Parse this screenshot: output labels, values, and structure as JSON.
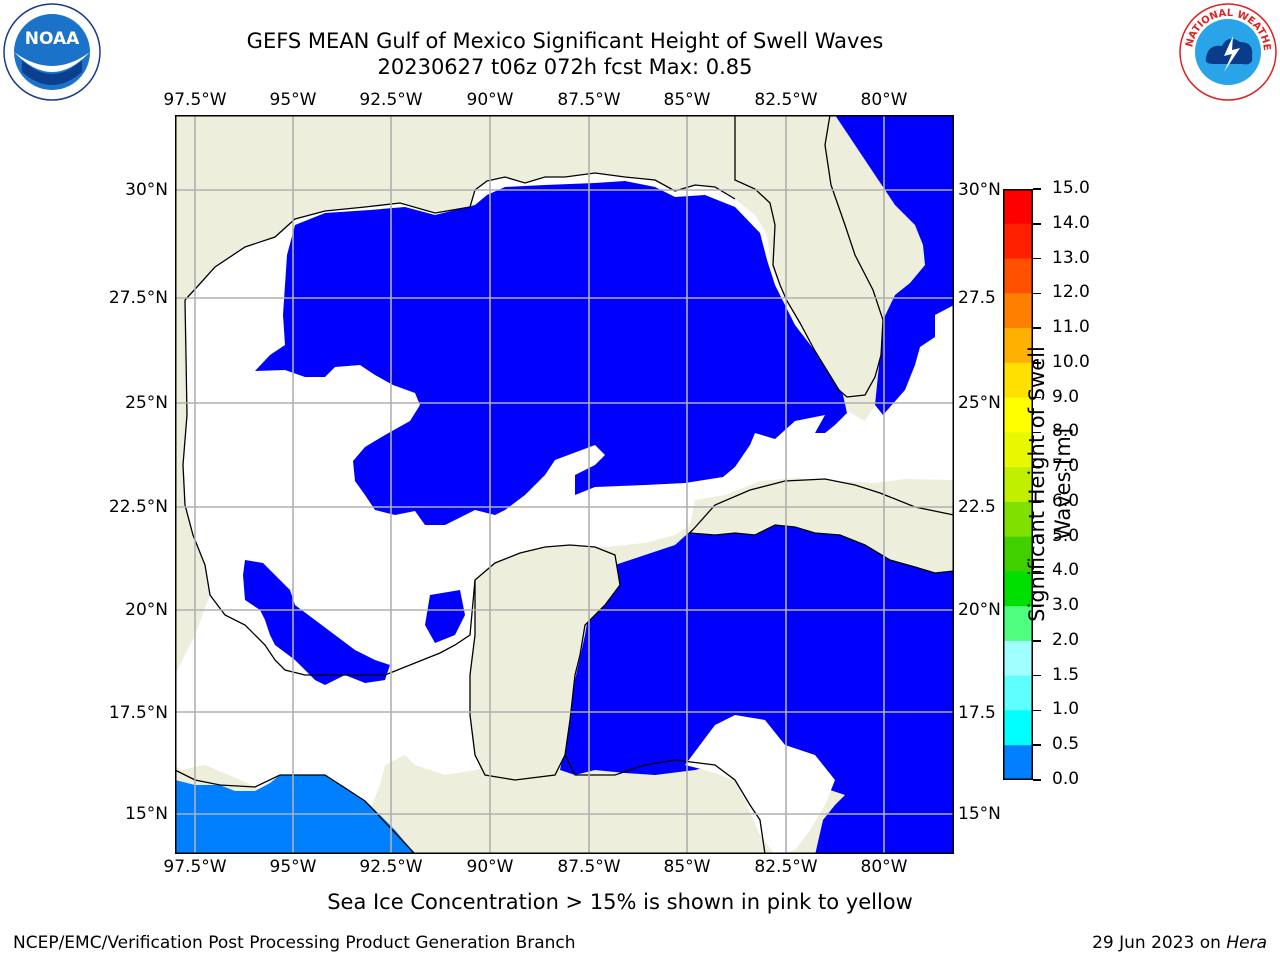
{
  "header": {
    "title_line1": "GEFS MEAN Gulf of Mexico Significant Height of Swell Waves",
    "title_line2": "20230627 t06z 072h fcst   Max: 0.85"
  },
  "map": {
    "lon_labels": [
      "97.5°W",
      "95°W",
      "92.5°W",
      "90°W",
      "87.5°W",
      "85°W",
      "82.5°W",
      "80°W"
    ],
    "lat_labels_left": [
      "30°N",
      "27.5°N",
      "25°N",
      "22.5°N",
      "20°N",
      "17.5°N",
      "15°N"
    ],
    "lat_labels_right": [
      "30°N",
      "27.5",
      "25°N",
      "22.5",
      "20°N",
      "17.5",
      "15°N"
    ],
    "colors": {
      "land": "#eeeedd",
      "ocean_zero": "#ffffff",
      "swell_low": "#0000ff",
      "swell_mid": "#0080ff",
      "grid": "#b0b0b0"
    }
  },
  "colorbar": {
    "label": "Significant Height of Swell Waves [m]",
    "label_line1": "Significant Height of Swell",
    "label_line2": "Waves [m]",
    "ticks": [
      "15.0",
      "14.0",
      "13.0",
      "12.0",
      "11.0",
      "10.0",
      "9.0",
      "8.0",
      "7.0",
      "6.0",
      "5.0",
      "4.0",
      "3.0",
      "2.0",
      "1.5",
      "1.0",
      "0.5",
      "0.0"
    ],
    "segment_colors": [
      "#ff0000",
      "#ff2000",
      "#ff5000",
      "#ff8000",
      "#ffb000",
      "#ffe000",
      "#ffff00",
      "#e8f800",
      "#c0f000",
      "#80e000",
      "#40d000",
      "#00e000",
      "#50ff80",
      "#a0ffff",
      "#60ffff",
      "#00ffff",
      "#0080ff",
      "#0000ff"
    ]
  },
  "notes": {
    "ice_note": "Sea Ice Concentration > 15% is shown in pink to yellow"
  },
  "footer": {
    "left": "NCEP/EMC/Verification Post Processing Product Generation Branch",
    "right_prefix": "29 Jun 2023 on ",
    "right_machine": "Hera"
  },
  "logos": {
    "left_text": "NOAA",
    "right_text": "NATIONAL WEATHER SERVICE"
  }
}
